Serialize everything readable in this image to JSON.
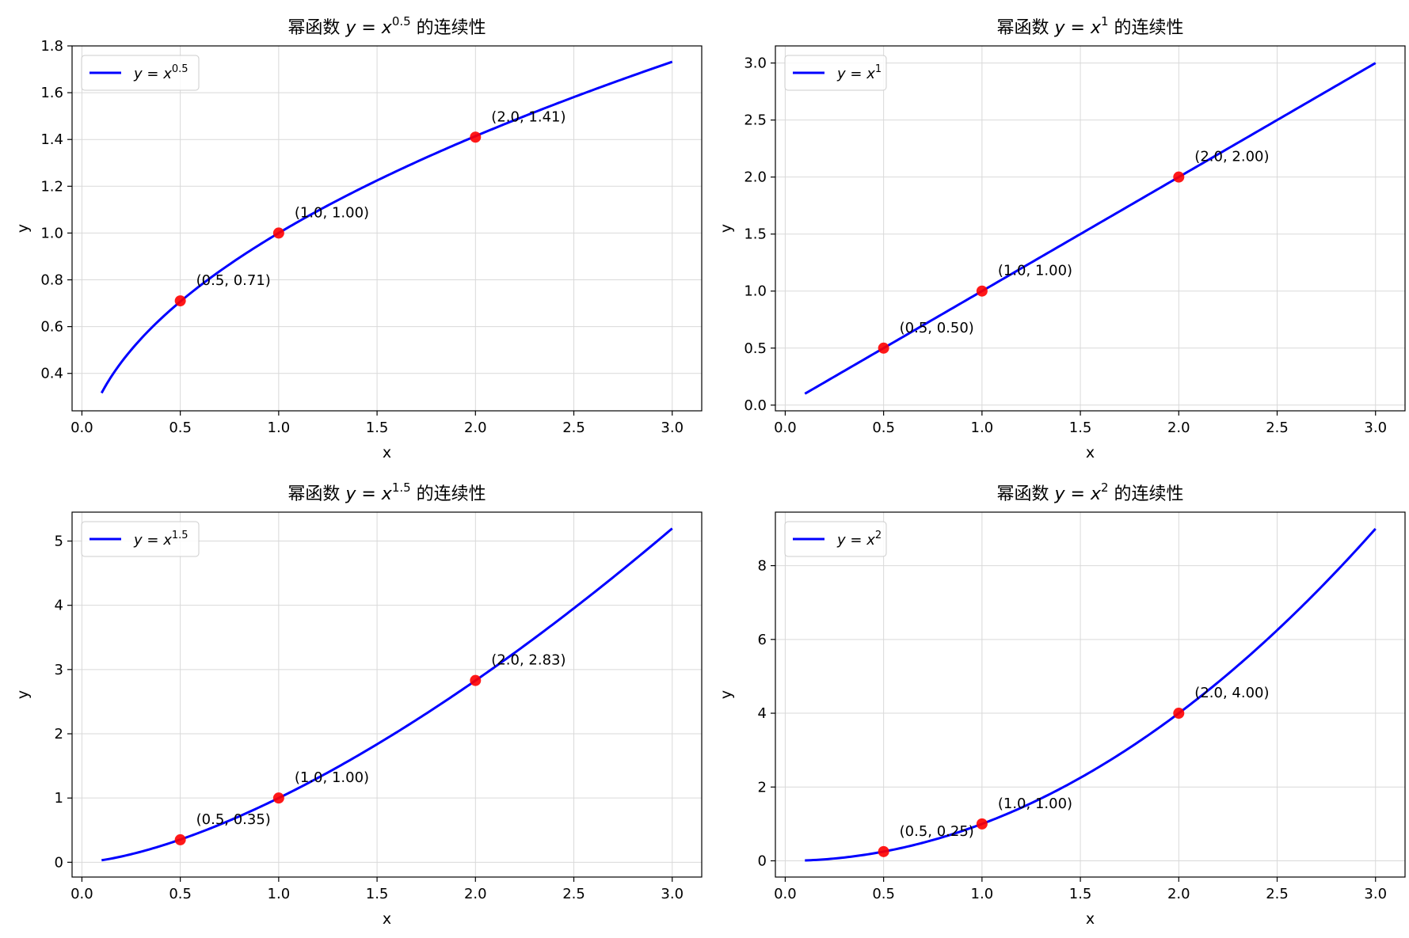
{
  "figure": {
    "background": "#ffffff",
    "line_color": "#0000ff",
    "point_color": "#ff0000",
    "grid_color": "#d9d9d9"
  },
  "chart_data": [
    {
      "type": "line",
      "title": "幂函数 y = x^0.5 的连续性",
      "title_prefix": "幂函数",
      "title_suffix": "的连续性",
      "exponent": "0.5",
      "function_power": 0.5,
      "xlabel": "x",
      "ylabel": "y",
      "xlim": [
        -0.05,
        3.15
      ],
      "ylim": [
        0.24,
        1.8
      ],
      "xticks": [
        0.0,
        0.5,
        1.0,
        1.5,
        2.0,
        2.5,
        3.0
      ],
      "xtick_labels": [
        "0.0",
        "0.5",
        "1.0",
        "1.5",
        "2.0",
        "2.5",
        "3.0"
      ],
      "yticks": [
        0.4,
        0.6,
        0.8,
        1.0,
        1.2,
        1.4,
        1.6,
        1.8
      ],
      "ytick_labels": [
        "0.4",
        "0.6",
        "0.8",
        "1.0",
        "1.2",
        "1.4",
        "1.6",
        "1.8"
      ],
      "x_range": [
        0.1,
        3.0
      ],
      "series": [
        {
          "name": "y = x^0.5",
          "legend_exponent": "0.5"
        }
      ],
      "points": [
        {
          "x": 0.5,
          "y": 0.71,
          "label": "(0.5, 0.71)"
        },
        {
          "x": 1.0,
          "y": 1.0,
          "label": "(1.0, 1.00)"
        },
        {
          "x": 2.0,
          "y": 1.41,
          "label": "(2.0, 1.41)"
        }
      ],
      "grid": true,
      "legend": "upper-left"
    },
    {
      "type": "line",
      "title": "幂函数 y = x^1 的连续性",
      "title_prefix": "幂函数",
      "title_suffix": "的连续性",
      "exponent": "1",
      "function_power": 1,
      "xlabel": "x",
      "ylabel": "y",
      "xlim": [
        -0.05,
        3.15
      ],
      "ylim": [
        -0.05,
        3.15
      ],
      "xticks": [
        0.0,
        0.5,
        1.0,
        1.5,
        2.0,
        2.5,
        3.0
      ],
      "xtick_labels": [
        "0.0",
        "0.5",
        "1.0",
        "1.5",
        "2.0",
        "2.5",
        "3.0"
      ],
      "yticks": [
        0.0,
        0.5,
        1.0,
        1.5,
        2.0,
        2.5,
        3.0
      ],
      "ytick_labels": [
        "0.0",
        "0.5",
        "1.0",
        "1.5",
        "2.0",
        "2.5",
        "3.0"
      ],
      "x_range": [
        0.1,
        3.0
      ],
      "series": [
        {
          "name": "y = x^1",
          "legend_exponent": "1"
        }
      ],
      "points": [
        {
          "x": 0.5,
          "y": 0.5,
          "label": "(0.5, 0.50)"
        },
        {
          "x": 1.0,
          "y": 1.0,
          "label": "(1.0, 1.00)"
        },
        {
          "x": 2.0,
          "y": 2.0,
          "label": "(2.0, 2.00)"
        }
      ],
      "grid": true,
      "legend": "upper-left"
    },
    {
      "type": "line",
      "title": "幂函数 y = x^1.5 的连续性",
      "title_prefix": "幂函数",
      "title_suffix": "的连续性",
      "exponent": "1.5",
      "function_power": 1.5,
      "xlabel": "x",
      "ylabel": "y",
      "xlim": [
        -0.05,
        3.15
      ],
      "ylim": [
        -0.23,
        5.45
      ],
      "xticks": [
        0.0,
        0.5,
        1.0,
        1.5,
        2.0,
        2.5,
        3.0
      ],
      "xtick_labels": [
        "0.0",
        "0.5",
        "1.0",
        "1.5",
        "2.0",
        "2.5",
        "3.0"
      ],
      "yticks": [
        0,
        1,
        2,
        3,
        4,
        5
      ],
      "ytick_labels": [
        "0",
        "1",
        "2",
        "3",
        "4",
        "5"
      ],
      "x_range": [
        0.1,
        3.0
      ],
      "series": [
        {
          "name": "y = x^1.5",
          "legend_exponent": "1.5"
        }
      ],
      "points": [
        {
          "x": 0.5,
          "y": 0.35,
          "label": "(0.5, 0.35)"
        },
        {
          "x": 1.0,
          "y": 1.0,
          "label": "(1.0, 1.00)"
        },
        {
          "x": 2.0,
          "y": 2.83,
          "label": "(2.0, 2.83)"
        }
      ],
      "grid": true,
      "legend": "upper-left"
    },
    {
      "type": "line",
      "title": "幂函数 y = x^2 的连续性",
      "title_prefix": "幂函数",
      "title_suffix": "的连续性",
      "exponent": "2",
      "function_power": 2,
      "xlabel": "x",
      "ylabel": "y",
      "xlim": [
        -0.05,
        3.15
      ],
      "ylim": [
        -0.44,
        9.45
      ],
      "xticks": [
        0.0,
        0.5,
        1.0,
        1.5,
        2.0,
        2.5,
        3.0
      ],
      "xtick_labels": [
        "0.0",
        "0.5",
        "1.0",
        "1.5",
        "2.0",
        "2.5",
        "3.0"
      ],
      "yticks": [
        0,
        2,
        4,
        6,
        8
      ],
      "ytick_labels": [
        "0",
        "2",
        "4",
        "6",
        "8"
      ],
      "x_range": [
        0.1,
        3.0
      ],
      "series": [
        {
          "name": "y = x^2",
          "legend_exponent": "2"
        }
      ],
      "points": [
        {
          "x": 0.5,
          "y": 0.25,
          "label": "(0.5, 0.25)"
        },
        {
          "x": 1.0,
          "y": 1.0,
          "label": "(1.0, 1.00)"
        },
        {
          "x": 2.0,
          "y": 4.0,
          "label": "(2.0, 4.00)"
        }
      ],
      "grid": true,
      "legend": "upper-left"
    }
  ]
}
